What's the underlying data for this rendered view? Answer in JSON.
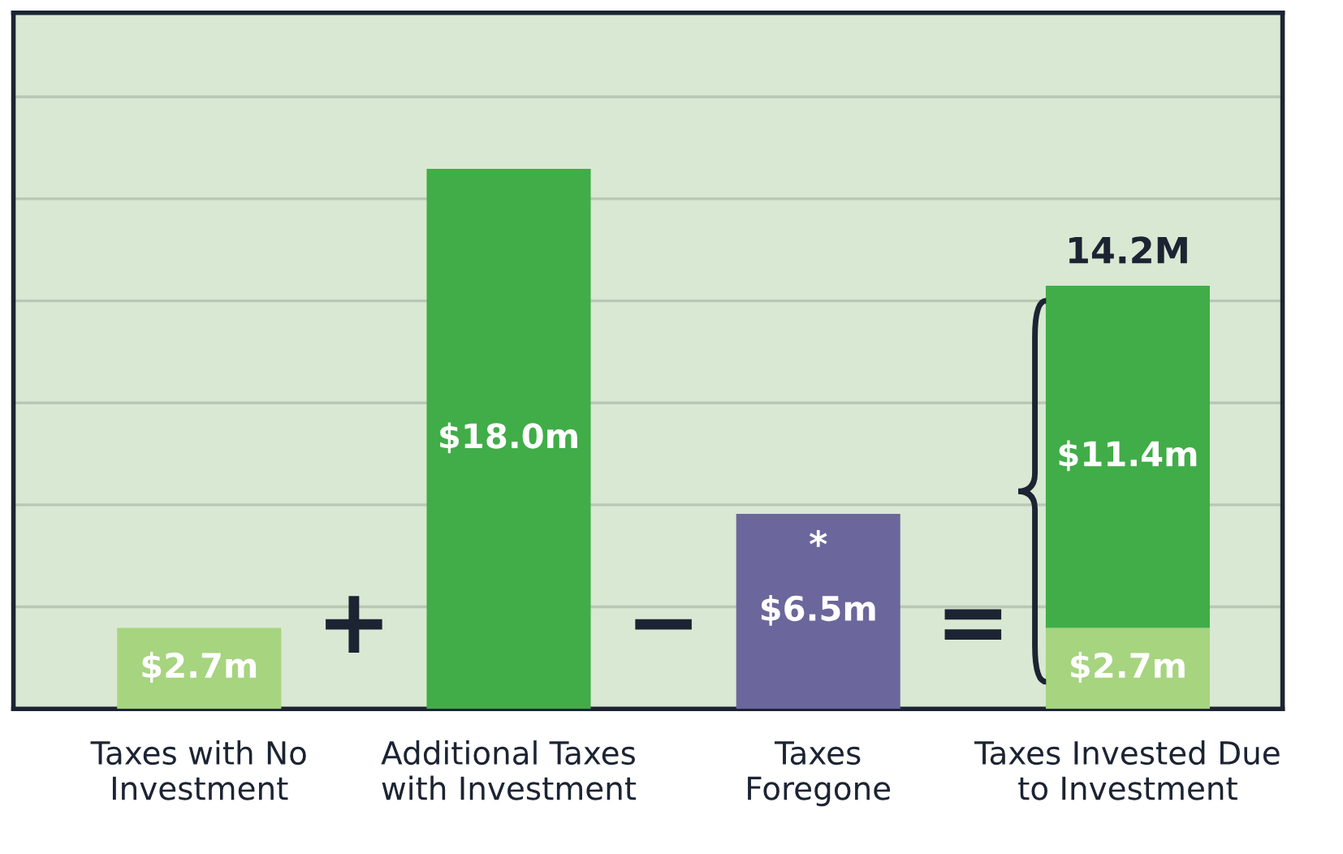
{
  "chart_data": {
    "type": "bar",
    "stacked": true,
    "categories": [
      "Taxes with No\nInvestment",
      "Additional Taxes\nwith Investment",
      "Taxes\nForegone",
      "Taxes Invested Due\nto Investment"
    ],
    "series": [
      {
        "values": [
          2.7,
          null,
          null,
          2.7
        ],
        "color": "#a6d47f",
        "value_labels": [
          "$2.7m",
          null,
          null,
          "$2.7m"
        ]
      },
      {
        "values": [
          null,
          18.0,
          6.5,
          11.4
        ],
        "colors": [
          null,
          "#40ad48",
          "#6b679c",
          "#40ad48"
        ],
        "value_labels": [
          null,
          "$18.0m",
          "$6.5m",
          "$11.4m"
        ]
      }
    ],
    "totals": [
      null,
      null,
      null,
      "14.2M"
    ],
    "annotations": [
      "+",
      "−",
      "=",
      "*"
    ],
    "ylim": [
      0,
      23.2
    ],
    "yticks": [
      {
        "value": 3.4,
        "label": null
      },
      {
        "value": 6.8,
        "label": null
      },
      {
        "value": 10.2,
        "label": null
      },
      {
        "value": 13.6,
        "label": null
      },
      {
        "value": 17.0,
        "label": null
      },
      {
        "value": 20.4,
        "label": null
      }
    ],
    "grid": "y",
    "legend": false,
    "tick_labels": "x"
  }
}
